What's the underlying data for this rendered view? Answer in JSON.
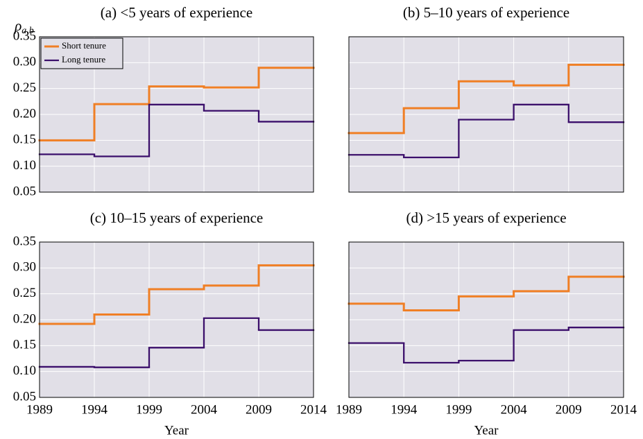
{
  "chart_data": [
    {
      "type": "step",
      "title": "(a) <5 years of experience",
      "ylabel": {
        "symbol": "ρ",
        "subscript": "a,b"
      },
      "x": [
        1989,
        1994,
        1999,
        2004,
        2009
      ],
      "step": "post",
      "series": [
        {
          "name": "Short tenure",
          "color": "#f07f25",
          "values": [
            0.15,
            0.22,
            0.254,
            0.252,
            0.29
          ]
        },
        {
          "name": "Long tenure",
          "color": "#3b0f6b",
          "values": [
            0.123,
            0.119,
            0.219,
            0.207,
            0.186
          ]
        }
      ],
      "xlim": [
        1989,
        2014
      ],
      "xticks": [
        1989,
        1994,
        1999,
        2004,
        2009,
        2014
      ],
      "xtick_labels": false,
      "ylim": [
        0.05,
        0.35
      ],
      "yticks": [
        0.05,
        {
          "value": 0.1,
          "label": "0.10"
        },
        0.15,
        {
          "value": 0.2,
          "label": "0.20"
        },
        0.25,
        {
          "value": 0.3,
          "label": "0.30"
        },
        0.35
      ],
      "ytick_labels": true,
      "grid": true,
      "legend": "upper-left"
    },
    {
      "type": "step",
      "title": "(b) 5–10 years of experience",
      "x": [
        1989,
        1994,
        1999,
        2004,
        2009
      ],
      "step": "post",
      "series": [
        {
          "color": "#f07f25",
          "values": [
            0.164,
            0.212,
            0.264,
            0.256,
            0.296
          ]
        },
        {
          "color": "#3b0f6b",
          "values": [
            0.122,
            0.117,
            0.19,
            0.219,
            0.185
          ]
        }
      ],
      "xlim": [
        1989,
        2014
      ],
      "xticks": [
        1989,
        1994,
        1999,
        2004,
        2009,
        2014
      ],
      "xtick_labels": false,
      "ylim": [
        0.05,
        0.35
      ],
      "yticks": [
        0.05,
        0.1,
        0.15,
        0.2,
        0.25,
        0.3,
        0.35
      ],
      "ytick_labels": false,
      "grid": true
    },
    {
      "type": "step",
      "title": "(c) 10–15 years of experience",
      "xlabel": "Year",
      "x": [
        1989,
        1994,
        1999,
        2004,
        2009
      ],
      "step": "post",
      "series": [
        {
          "color": "#f07f25",
          "values": [
            0.192,
            0.21,
            0.259,
            0.266,
            0.305
          ]
        },
        {
          "color": "#3b0f6b",
          "values": [
            0.109,
            0.108,
            0.146,
            0.203,
            0.18
          ]
        }
      ],
      "xlim": [
        1989,
        2014
      ],
      "xticks": [
        1989,
        1994,
        1999,
        2004,
        2009,
        2014
      ],
      "xtick_labels": true,
      "ylim": [
        0.05,
        0.35
      ],
      "yticks": [
        0.05,
        {
          "value": 0.1,
          "label": "0.10"
        },
        0.15,
        {
          "value": 0.2,
          "label": "0.20"
        },
        0.25,
        {
          "value": 0.3,
          "label": "0.30"
        },
        0.35
      ],
      "ytick_labels": true,
      "grid": true
    },
    {
      "type": "step",
      "title": "(d) >15 years of experience",
      "xlabel": "Year",
      "x": [
        1989,
        1994,
        1999,
        2004,
        2009
      ],
      "step": "post",
      "series": [
        {
          "color": "#f07f25",
          "values": [
            0.231,
            0.218,
            0.245,
            0.255,
            0.283
          ]
        },
        {
          "color": "#3b0f6b",
          "values": [
            0.155,
            0.117,
            0.121,
            0.18,
            0.185
          ]
        }
      ],
      "xlim": [
        1989,
        2014
      ],
      "xticks": [
        1989,
        1994,
        1999,
        2004,
        2009,
        2014
      ],
      "xtick_labels": true,
      "ylim": [
        0.05,
        0.35
      ],
      "yticks": [
        0.05,
        0.1,
        0.15,
        0.2,
        0.25,
        0.3,
        0.35
      ],
      "ytick_labels": false,
      "grid": true
    }
  ]
}
